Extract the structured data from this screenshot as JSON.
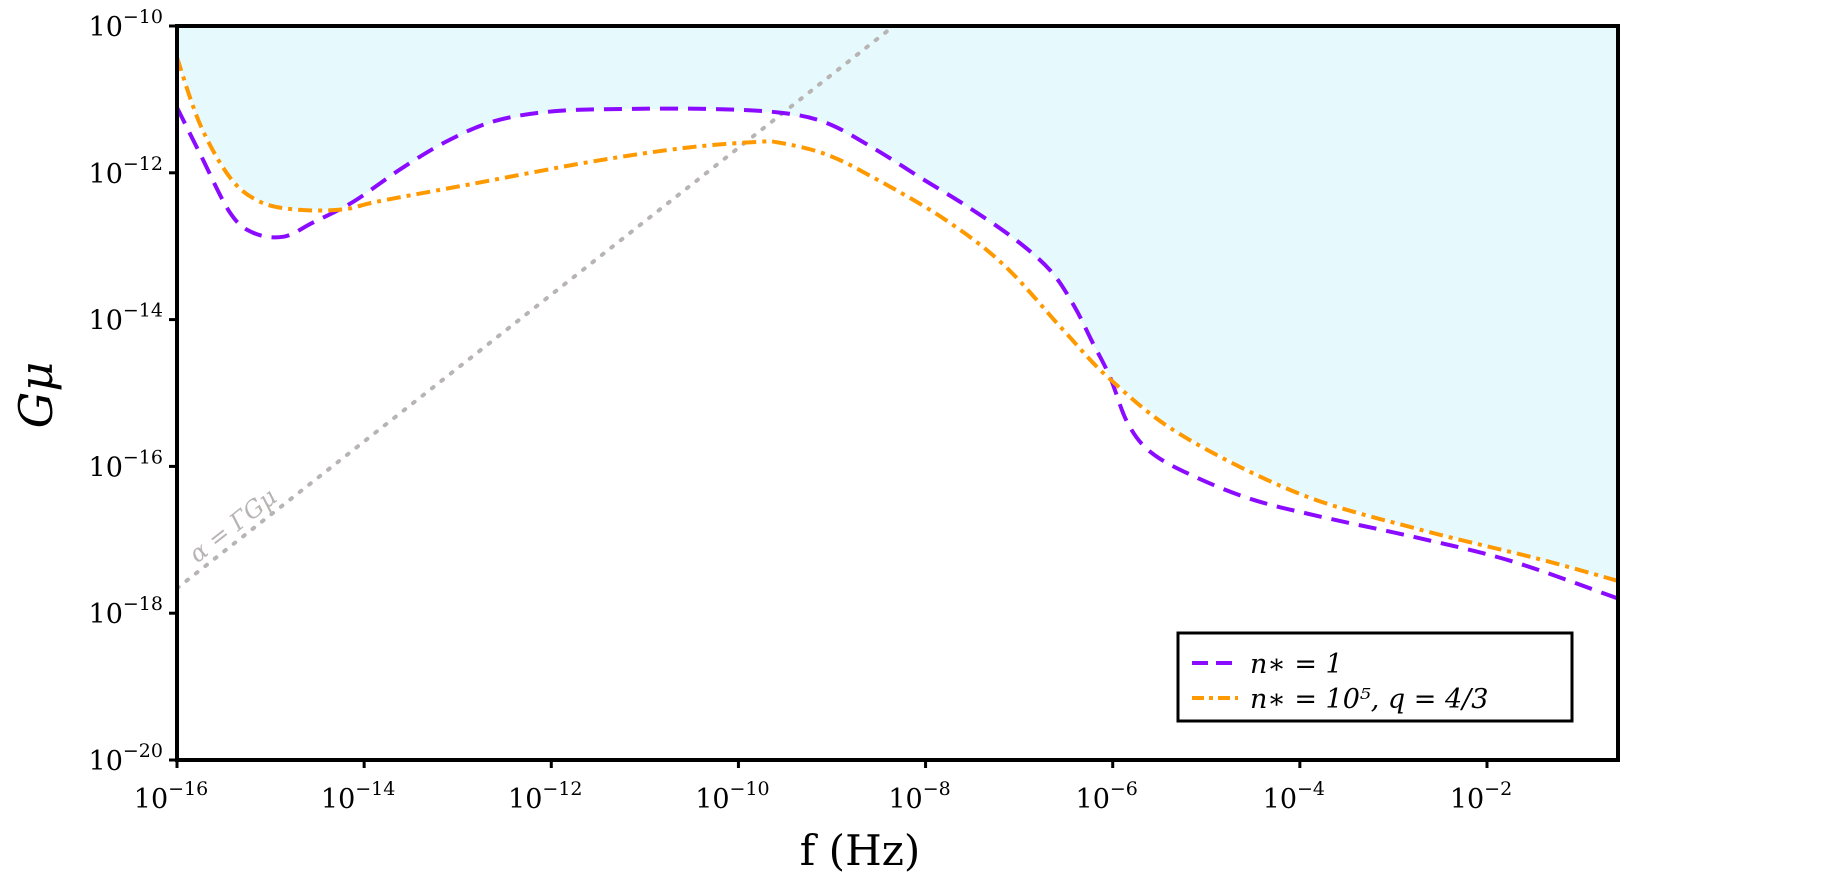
{
  "chart_data": {
    "type": "line",
    "title": "",
    "xlabel": "f (Hz)",
    "ylabel": "Gμ",
    "xscale": "log",
    "yscale": "log",
    "xlim_log10": [
      -16,
      -0.6
    ],
    "ylim_log10": [
      -20,
      -10
    ],
    "grid": false,
    "legend_position": "lower-right",
    "x_ticks": [
      {
        "value": -16,
        "base": "10",
        "exp": "−16"
      },
      {
        "value": -14,
        "base": "10",
        "exp": "−14"
      },
      {
        "value": -12,
        "base": "10",
        "exp": "−12"
      },
      {
        "value": -10,
        "base": "10",
        "exp": "−10"
      },
      {
        "value": -8,
        "base": "10",
        "exp": "−8"
      },
      {
        "value": -6,
        "base": "10",
        "exp": "−6"
      },
      {
        "value": -4,
        "base": "10",
        "exp": "−4"
      },
      {
        "value": -2,
        "base": "10",
        "exp": "−2"
      }
    ],
    "y_ticks": [
      {
        "value": -10,
        "base": "10",
        "exp": "−10"
      },
      {
        "value": -12,
        "base": "10",
        "exp": "−12"
      },
      {
        "value": -14,
        "base": "10",
        "exp": "−14"
      },
      {
        "value": -16,
        "base": "10",
        "exp": "−16"
      },
      {
        "value": -18,
        "base": "10",
        "exp": "−18"
      },
      {
        "value": -20,
        "base": "10",
        "exp": "−20"
      }
    ],
    "series": [
      {
        "name": "n∗ = 1",
        "style": "dashed",
        "color": "#8a0bff",
        "log10_f": [
          -16,
          -15.75,
          -15.43,
          -15.18,
          -14.86,
          -14.55,
          -14.11,
          -13.6,
          -13.1,
          -12.59,
          -11.96,
          -11.2,
          -10.32,
          -9.56,
          -9.06,
          -8.55,
          -8.05,
          -7.54,
          -7.04,
          -6.66,
          -6.41,
          -6.22,
          -6.03,
          -5.84,
          -5.59,
          -5.14,
          -4.51,
          -3.76,
          -2.75,
          -1.74,
          -0.6
        ],
        "log10_Gmu": [
          -11.11,
          -11.75,
          -12.55,
          -12.82,
          -12.87,
          -12.68,
          -12.39,
          -11.94,
          -11.56,
          -11.29,
          -11.16,
          -11.13,
          -11.13,
          -11.18,
          -11.32,
          -11.67,
          -12.07,
          -12.47,
          -12.91,
          -13.34,
          -13.82,
          -14.3,
          -14.78,
          -15.41,
          -15.81,
          -16.13,
          -16.45,
          -16.69,
          -16.97,
          -17.29,
          -17.8
        ]
      },
      {
        "name": "n∗ = 10⁵, q = 4/3",
        "style": "dashdot",
        "color": "#ff9900",
        "log10_f": [
          -16,
          -15.75,
          -15.43,
          -15.12,
          -14.74,
          -14.23,
          -13.85,
          -12.84,
          -11.58,
          -10.57,
          -9.81,
          -9.56,
          -9.06,
          -8.55,
          -7.8,
          -7.16,
          -6.53,
          -6.03,
          -5.27,
          -4.01,
          -2.75,
          -1.48,
          -0.6
        ],
        "log10_Gmu": [
          -10.43,
          -11.35,
          -12.07,
          -12.39,
          -12.5,
          -12.5,
          -12.39,
          -12.15,
          -11.85,
          -11.66,
          -11.58,
          -11.59,
          -11.75,
          -12.07,
          -12.63,
          -13.26,
          -14.14,
          -14.81,
          -15.57,
          -16.37,
          -16.85,
          -17.25,
          -17.56
        ]
      }
    ],
    "reference_line": {
      "label": "α = ΓGμ",
      "style": "dotted",
      "color": "#b8b4b4",
      "log10_f": [
        -16,
        -8.34
      ],
      "log10_Gmu": [
        -17.66,
        -10
      ]
    },
    "shaded_region": {
      "description_of_bound": "above both curves",
      "color": "#e6f9fd"
    }
  }
}
